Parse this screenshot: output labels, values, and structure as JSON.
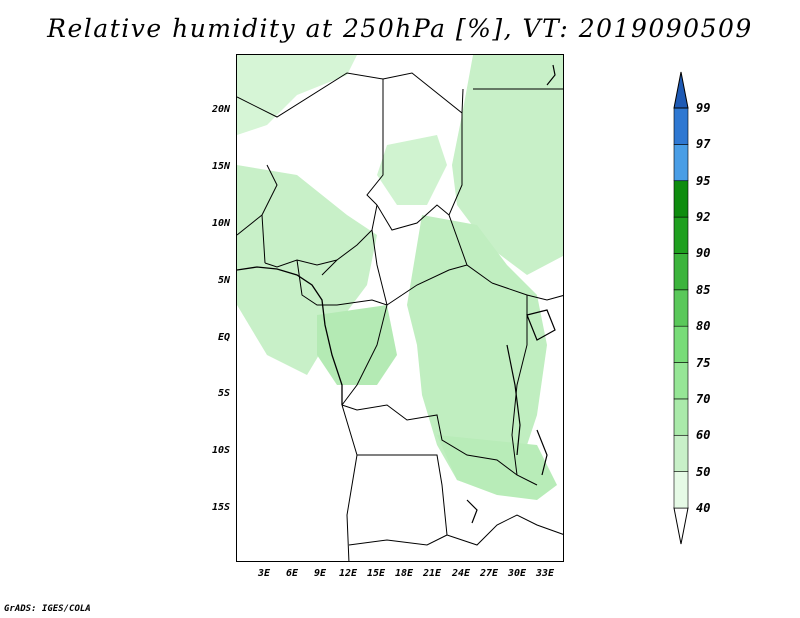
{
  "title": "Relative humidity at 250hPa [%], VT: 2019090509",
  "credit": "GrADS: IGES/COLA",
  "map": {
    "lat_ticks": [
      "20N",
      "15N",
      "10N",
      "5N",
      "EQ",
      "5S",
      "10S",
      "15S"
    ],
    "lon_ticks": [
      "3E",
      "6E",
      "9E",
      "12E",
      "15E",
      "18E",
      "21E",
      "24E",
      "27E",
      "30E",
      "33E"
    ]
  },
  "colorbar": {
    "levels": [
      "40",
      "50",
      "60",
      "70",
      "75",
      "80",
      "85",
      "90",
      "92",
      "95",
      "97",
      "99"
    ],
    "colors": [
      "#e6fae6",
      "#c8f0c8",
      "#aaeaaa",
      "#96e696",
      "#78dc78",
      "#5ac85a",
      "#3cb43c",
      "#1fa01f",
      "#0e8c0e",
      "#4a9ee6",
      "#2f78d2",
      "#1e5ab4"
    ],
    "below_color": "#ffffff",
    "above_color": "#1e5ab4"
  }
}
